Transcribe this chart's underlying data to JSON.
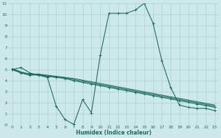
{
  "xlabel": "Humidex (Indice chaleur)",
  "bg_color": "#cce8e8",
  "grid_color": "#aacfcf",
  "line_color": "#1a6b5a",
  "xlim": [
    -0.5,
    23.5
  ],
  "ylim": [
    0,
    11
  ],
  "xticks": [
    0,
    1,
    2,
    3,
    4,
    5,
    6,
    7,
    8,
    9,
    10,
    11,
    12,
    13,
    14,
    15,
    16,
    17,
    18,
    19,
    20,
    21,
    22,
    23
  ],
  "yticks": [
    0,
    1,
    2,
    3,
    4,
    5,
    6,
    7,
    8,
    9,
    10,
    11
  ],
  "curve_main_x": [
    0,
    1,
    2,
    3,
    4,
    5,
    6,
    7,
    8,
    9,
    10,
    11,
    12,
    13,
    14,
    15,
    16,
    17,
    18,
    19,
    20,
    21,
    22,
    23
  ],
  "curve_main_y": [
    5.0,
    5.2,
    4.7,
    4.5,
    4.3,
    1.7,
    0.5,
    0.05,
    2.3,
    1.1,
    6.3,
    10.1,
    10.1,
    10.1,
    10.4,
    11.0,
    9.2,
    5.8,
    3.4,
    1.8,
    1.6,
    1.5,
    1.5,
    1.3
  ],
  "curve2_x": [
    0,
    1,
    2,
    3,
    4,
    5,
    6,
    7,
    8,
    9,
    10,
    11,
    12,
    13,
    14,
    15,
    16,
    17,
    18,
    19,
    20,
    21,
    22,
    23
  ],
  "curve2_y": [
    5.0,
    4.7,
    4.5,
    4.55,
    4.4,
    4.3,
    4.2,
    4.0,
    3.85,
    3.7,
    3.55,
    3.4,
    3.25,
    3.1,
    2.95,
    2.8,
    2.65,
    2.5,
    2.35,
    2.2,
    2.05,
    1.9,
    1.75,
    1.6
  ],
  "curve3_x": [
    0,
    1,
    2,
    3,
    4,
    5,
    6,
    7,
    8,
    9,
    10,
    11,
    12,
    13,
    14,
    15,
    16,
    17,
    18,
    19,
    20,
    21,
    22,
    23
  ],
  "curve3_y": [
    5.1,
    4.8,
    4.6,
    4.6,
    4.5,
    4.4,
    4.3,
    4.2,
    4.05,
    3.9,
    3.75,
    3.6,
    3.45,
    3.3,
    3.15,
    3.0,
    2.85,
    2.7,
    2.55,
    2.4,
    2.25,
    2.1,
    1.95,
    1.8
  ],
  "curve4_x": [
    0,
    1,
    2,
    3,
    4,
    5,
    6,
    7,
    8,
    9,
    10,
    11,
    12,
    13,
    14,
    15,
    16,
    17,
    18,
    19,
    20,
    21,
    22,
    23
  ],
  "curve4_y": [
    5.05,
    4.75,
    4.55,
    4.5,
    4.42,
    4.35,
    4.27,
    4.1,
    3.95,
    3.8,
    3.65,
    3.5,
    3.35,
    3.2,
    3.05,
    2.9,
    2.75,
    2.6,
    2.45,
    2.3,
    2.15,
    2.0,
    1.85,
    1.7
  ]
}
